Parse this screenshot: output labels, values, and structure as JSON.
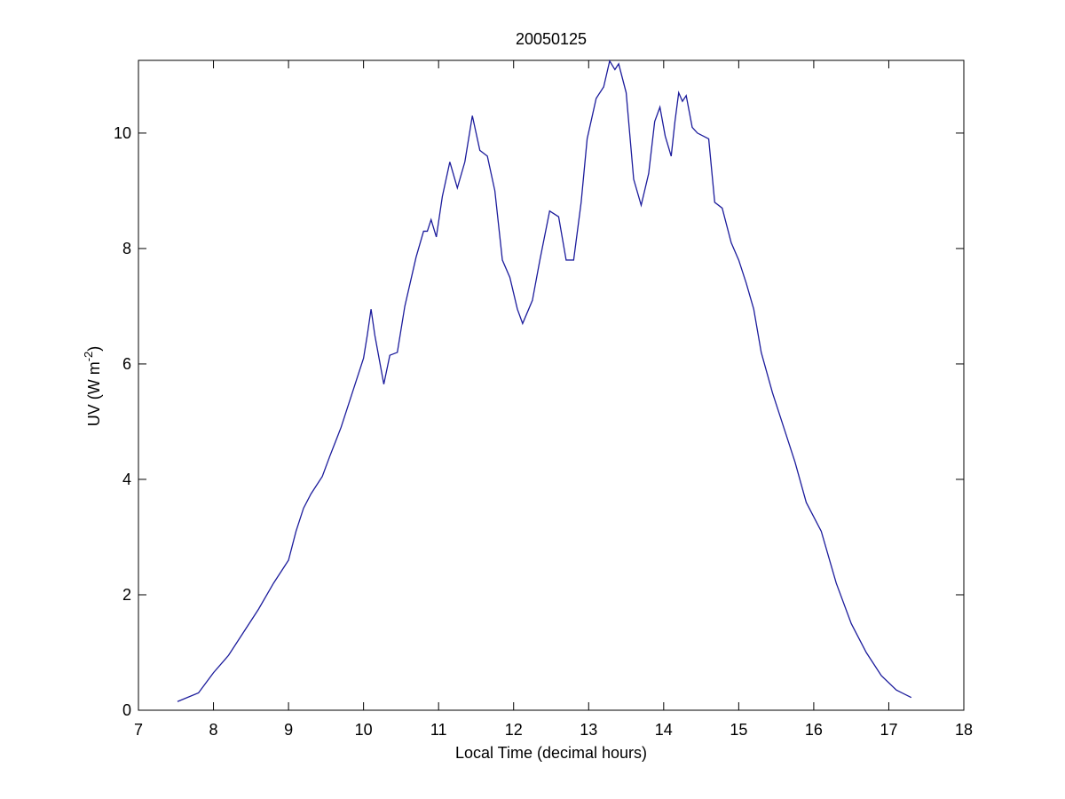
{
  "chart_data": {
    "type": "line",
    "title": "20050125",
    "xlabel": "Local Time (decimal hours)",
    "ylabel_parts": [
      "UV (W m",
      "-2",
      ")"
    ],
    "x": [
      7.52,
      7.8,
      8.0,
      8.2,
      8.4,
      8.6,
      8.8,
      8.95,
      9.0,
      9.1,
      9.2,
      9.3,
      9.45,
      9.55,
      9.7,
      9.85,
      10.0,
      10.05,
      10.1,
      10.15,
      10.27,
      10.35,
      10.45,
      10.55,
      10.7,
      10.8,
      10.85,
      10.9,
      10.97,
      11.05,
      11.15,
      11.25,
      11.35,
      11.45,
      11.55,
      11.65,
      11.75,
      11.85,
      11.95,
      12.05,
      12.12,
      12.25,
      12.35,
      12.48,
      12.6,
      12.7,
      12.8,
      12.9,
      12.98,
      13.1,
      13.2,
      13.28,
      13.35,
      13.4,
      13.5,
      13.6,
      13.7,
      13.8,
      13.88,
      13.95,
      14.02,
      14.1,
      14.15,
      14.2,
      14.25,
      14.3,
      14.38,
      14.45,
      14.6,
      14.68,
      14.78,
      14.9,
      15.0,
      15.1,
      15.2,
      15.3,
      15.45,
      15.6,
      15.75,
      15.9,
      16.1,
      16.3,
      16.5,
      16.7,
      16.9,
      17.1,
      17.3
    ],
    "series": [
      {
        "color": "#1c1c9c",
        "values": [
          0.15,
          0.3,
          0.65,
          0.95,
          1.35,
          1.75,
          2.2,
          2.5,
          2.6,
          3.1,
          3.5,
          3.75,
          4.05,
          4.4,
          4.9,
          5.5,
          6.1,
          6.5,
          6.95,
          6.5,
          5.65,
          6.15,
          6.2,
          7.0,
          7.85,
          8.3,
          8.3,
          8.5,
          8.2,
          8.9,
          9.5,
          9.05,
          9.5,
          10.3,
          9.7,
          9.6,
          9.0,
          7.8,
          7.5,
          6.95,
          6.7,
          7.1,
          7.8,
          8.65,
          8.55,
          7.8,
          7.8,
          8.8,
          9.9,
          10.6,
          10.8,
          11.25,
          11.1,
          11.2,
          10.7,
          9.2,
          8.75,
          9.3,
          10.2,
          10.45,
          9.95,
          9.6,
          10.2,
          10.7,
          10.55,
          10.65,
          10.1,
          10.0,
          9.9,
          8.8,
          8.7,
          8.1,
          7.8,
          7.4,
          6.95,
          6.2,
          5.5,
          4.9,
          4.3,
          3.6,
          3.1,
          2.2,
          1.5,
          1.0,
          0.6,
          0.35,
          0.22
        ]
      }
    ],
    "xlim": [
      7,
      18
    ],
    "xticks": [
      7,
      8,
      9,
      10,
      11,
      12,
      13,
      14,
      15,
      16,
      17,
      18
    ],
    "ylim": [
      0,
      11.26
    ],
    "yticks": [
      0,
      2,
      4,
      6,
      8,
      10
    ]
  }
}
